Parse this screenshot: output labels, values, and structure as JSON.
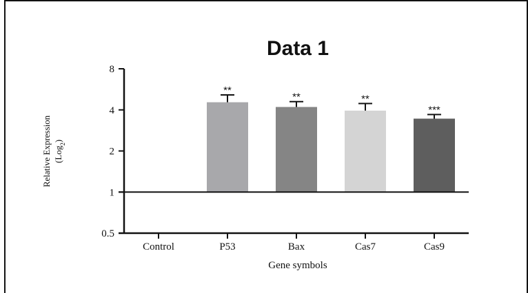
{
  "chart_data": {
    "type": "bar",
    "title": "Data 1",
    "xlabel": "Gene symbols",
    "ylabel_main": "Relative Expression",
    "ylabel_log_prefix": "(Log",
    "ylabel_log_sub": "2",
    "ylabel_log_suffix": ")",
    "yscale": "log2",
    "ylim": [
      0.5,
      8
    ],
    "yticks": [
      0.5,
      1,
      2,
      4,
      8
    ],
    "ytick_labels": [
      "0.5",
      "1",
      "2",
      "4",
      "8"
    ],
    "categories": [
      "Control",
      "P53",
      "Bax",
      "Cas7",
      "Cas9"
    ],
    "values": [
      1,
      4.55,
      4.2,
      3.95,
      3.45
    ],
    "errors": [
      0,
      0.6,
      0.4,
      0.5,
      0.25
    ],
    "significance": [
      "",
      "**",
      "**",
      "**",
      "***"
    ],
    "colors": [
      "#ffffff",
      "#a8a8ab",
      "#858585",
      "#d4d4d4",
      "#5e5e5e"
    ]
  }
}
